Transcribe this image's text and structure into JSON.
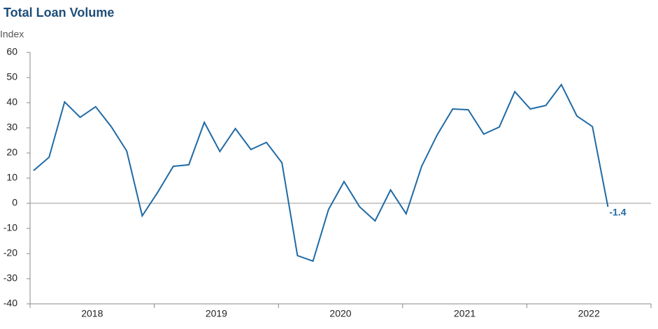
{
  "chart_data": {
    "type": "line",
    "title": "Total Loan Volume",
    "y_label": "Index",
    "year_labels": [
      "2018",
      "2019",
      "2020",
      "2021",
      "2022"
    ],
    "points_per_year": 8,
    "series": [
      {
        "name": null,
        "color": "#1f6aa5",
        "values": [
          13,
          18.3,
          40.3,
          34.2,
          38.4,
          30.5,
          20.8,
          -5,
          4.4,
          14.7,
          15.3,
          32.2,
          20.6,
          29.7,
          21.4,
          24.2,
          16.1,
          -20.8,
          -23,
          -2.5,
          8.6,
          -1.4,
          -7,
          5.3,
          -4.2,
          14.7,
          27.2,
          37.5,
          37.2,
          27.5,
          30.3,
          44.4,
          37.5,
          38.9,
          47.2,
          34.7,
          30.5,
          -1.4
        ]
      }
    ],
    "ylim": [
      -40,
      60
    ],
    "yticks": [
      -40,
      -30,
      -20,
      -10,
      0,
      10,
      20,
      30,
      40,
      50,
      60
    ]
  }
}
